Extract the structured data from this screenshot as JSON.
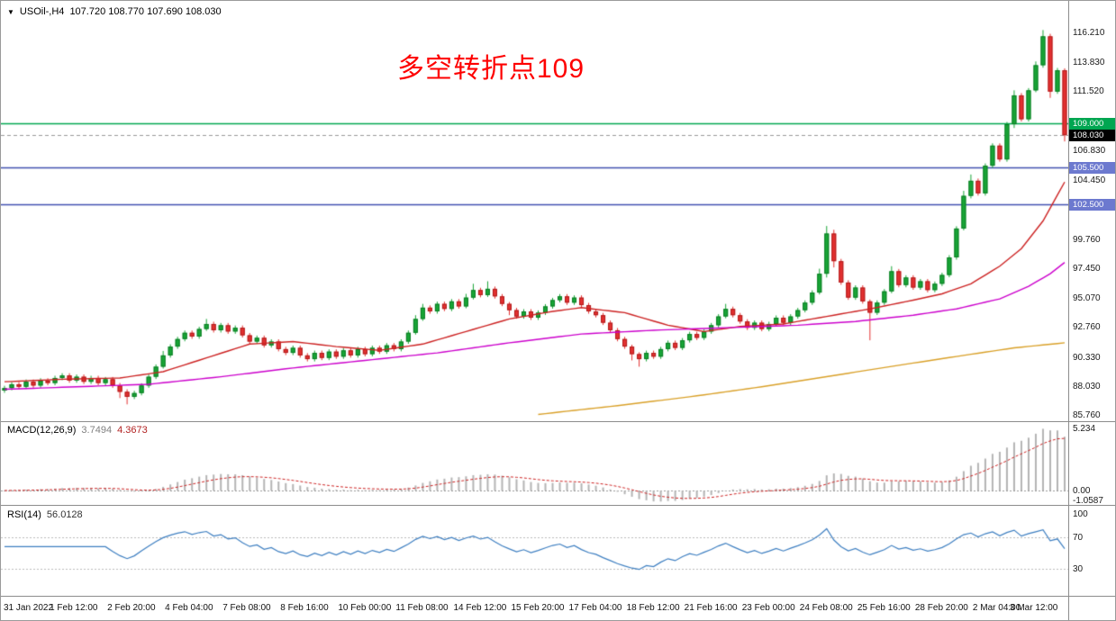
{
  "header": {
    "symbol_tf": "USOil-,H4",
    "ohlc": "107.720 108.770 107.690 108.030"
  },
  "annotation": {
    "text": "多空转折点109",
    "color": "#fe0000"
  },
  "chart_data": [
    {
      "type": "candlestick",
      "title": "USOil-,H4",
      "n": 148,
      "open_first": 87.7,
      "closes": [
        87.9,
        88.2,
        88.0,
        88.4,
        88.1,
        88.5,
        88.3,
        88.7,
        88.9,
        88.5,
        88.8,
        88.4,
        88.7,
        88.3,
        88.6,
        88.1,
        87.6,
        87.2,
        87.5,
        88.1,
        88.8,
        89.6,
        90.5,
        91.2,
        91.8,
        92.3,
        92.0,
        92.6,
        93.0,
        92.5,
        92.9,
        92.4,
        92.7,
        92.1,
        91.6,
        91.9,
        91.3,
        91.6,
        91.0,
        90.7,
        91.1,
        90.5,
        90.2,
        90.7,
        90.3,
        90.8,
        90.4,
        90.9,
        90.5,
        91.0,
        90.6,
        91.1,
        90.8,
        91.3,
        91.0,
        91.6,
        92.3,
        93.4,
        94.3,
        94.0,
        94.6,
        94.2,
        94.8,
        94.4,
        95.1,
        95.7,
        95.3,
        95.8,
        95.2,
        94.6,
        94.1,
        93.6,
        94.0,
        93.5,
        93.9,
        94.4,
        94.9,
        95.2,
        94.7,
        95.1,
        94.5,
        94.0,
        93.7,
        93.1,
        92.5,
        91.8,
        91.2,
        90.6,
        90.2,
        90.7,
        90.4,
        91.0,
        91.5,
        91.1,
        91.7,
        92.2,
        91.9,
        92.4,
        92.9,
        93.6,
        94.2,
        93.7,
        93.2,
        92.7,
        93.1,
        92.6,
        93.0,
        93.5,
        93.1,
        93.6,
        94.1,
        94.7,
        95.5,
        97.0,
        100.2,
        98.0,
        96.3,
        95.1,
        95.9,
        94.8,
        93.9,
        94.7,
        95.6,
        97.2,
        96.1,
        96.7,
        95.9,
        96.4,
        95.7,
        96.2,
        96.9,
        98.3,
        100.6,
        103.2,
        104.4,
        103.4,
        105.6,
        107.2,
        106.1,
        108.9,
        111.2,
        109.3,
        111.6,
        113.6,
        115.9,
        111.5,
        113.2,
        108.03
      ],
      "wick_default": 0.18,
      "wick_overrides": {
        "16": [
          0.2,
          0.5
        ],
        "17": [
          0.2,
          0.6
        ],
        "22": [
          0.35,
          0.15
        ],
        "28": [
          0.4,
          0.15
        ],
        "57": [
          0.3,
          0.15
        ],
        "58": [
          0.3,
          0.15
        ],
        "64": [
          0.3,
          0.15
        ],
        "65": [
          0.5,
          0.15
        ],
        "67": [
          0.6,
          0.15
        ],
        "70": [
          0.15,
          0.4
        ],
        "87": [
          0.15,
          0.5
        ],
        "88": [
          0.15,
          0.6
        ],
        "100": [
          0.4,
          0.15
        ],
        "113": [
          0.4,
          0.15
        ],
        "114": [
          0.6,
          0.3
        ],
        "115": [
          0.3,
          0.5
        ],
        "120": [
          0.15,
          2.2
        ],
        "123": [
          0.4,
          0.15
        ],
        "133": [
          0.4,
          0.15
        ],
        "134": [
          0.5,
          0.2
        ],
        "140": [
          0.4,
          0.3
        ],
        "143": [
          0.3,
          0.15
        ],
        "144": [
          0.5,
          0.2
        ],
        "145": [
          0.2,
          0.5
        ],
        "147": [
          0.15,
          0.5
        ]
      },
      "y_axis": {
        "top_price": 118.72,
        "bottom_price": 85.26,
        "ticks": [
          {
            "price": 116.21,
            "label": "116.210"
          },
          {
            "price": 113.83,
            "label": "113.830"
          },
          {
            "price": 111.52,
            "label": "111.520"
          },
          {
            "price": 106.83,
            "label": "106.830"
          },
          {
            "price": 104.45,
            "label": "104.450"
          },
          {
            "price": 99.76,
            "label": "99.760"
          },
          {
            "price": 97.45,
            "label": "97.450"
          },
          {
            "price": 95.07,
            "label": "95.070"
          },
          {
            "price": 92.76,
            "label": "92.760"
          },
          {
            "price": 90.33,
            "label": "90.330"
          },
          {
            "price": 88.03,
            "label": "88.030"
          },
          {
            "price": 85.76,
            "label": "85.760"
          }
        ],
        "badges": [
          {
            "price": 109.0,
            "label": "109.000",
            "bg": "#00a651"
          },
          {
            "price": 108.03,
            "label": "108.030",
            "bg": "#000000"
          },
          {
            "price": 105.5,
            "label": "105.500",
            "bg": "#6c79cf"
          },
          {
            "price": 102.5,
            "label": "102.500",
            "bg": "#6c79cf"
          }
        ]
      },
      "hlines": [
        {
          "price": 109.0,
          "color": "#00a651",
          "width": 1.6,
          "dash": false
        },
        {
          "price": 105.5,
          "color": "#4050b0",
          "width": 1.6,
          "dash": false
        },
        {
          "price": 102.5,
          "color": "#4050b0",
          "width": 1.6,
          "dash": false
        },
        {
          "price": 108.03,
          "color": "#9a9a9a",
          "width": 1,
          "dash": true
        }
      ],
      "ma_lines": [
        {
          "name": "ma-fast-red",
          "color": "#cc2222",
          "points": [
            [
              0,
              88.4
            ],
            [
              8,
              88.6
            ],
            [
              16,
              88.7
            ],
            [
              22,
              89.2
            ],
            [
              28,
              90.3
            ],
            [
              34,
              91.4
            ],
            [
              40,
              91.6
            ],
            [
              46,
              91.2
            ],
            [
              52,
              90.9
            ],
            [
              58,
              91.4
            ],
            [
              64,
              92.4
            ],
            [
              70,
              93.4
            ],
            [
              76,
              94.0
            ],
            [
              80,
              94.3
            ],
            [
              86,
              93.9
            ],
            [
              92,
              92.9
            ],
            [
              97,
              92.4
            ],
            [
              102,
              92.8
            ],
            [
              108,
              93.0
            ],
            [
              114,
              93.6
            ],
            [
              120,
              94.2
            ],
            [
              126,
              94.9
            ],
            [
              130,
              95.4
            ],
            [
              134,
              96.2
            ],
            [
              138,
              97.6
            ],
            [
              141,
              99.0
            ],
            [
              144,
              101.2
            ],
            [
              147,
              104.3
            ]
          ]
        },
        {
          "name": "ma-mid-magenta",
          "color": "#cc00cc",
          "points": [
            [
              0,
              87.8
            ],
            [
              10,
              88.0
            ],
            [
              20,
              88.2
            ],
            [
              30,
              88.8
            ],
            [
              40,
              89.5
            ],
            [
              50,
              90.1
            ],
            [
              60,
              90.7
            ],
            [
              70,
              91.5
            ],
            [
              80,
              92.2
            ],
            [
              90,
              92.5
            ],
            [
              100,
              92.7
            ],
            [
              110,
              92.9
            ],
            [
              118,
              93.2
            ],
            [
              126,
              93.7
            ],
            [
              132,
              94.2
            ],
            [
              138,
              95.0
            ],
            [
              142,
              96.0
            ],
            [
              145,
              97.0
            ],
            [
              147,
              97.9
            ]
          ]
        },
        {
          "name": "ma-slow-orange",
          "color": "#d9a028",
          "points": [
            [
              74,
              85.8
            ],
            [
              85,
              86.5
            ],
            [
              95,
              87.2
            ],
            [
              105,
              88.0
            ],
            [
              115,
              88.9
            ],
            [
              125,
              89.8
            ],
            [
              133,
              90.5
            ],
            [
              140,
              91.1
            ],
            [
              147,
              91.5
            ]
          ]
        }
      ],
      "colors": {
        "bull": "#18a536",
        "bull_stroke": "#0b7d24",
        "bear": "#e33030",
        "bear_stroke": "#b01c1c"
      },
      "x_tick_indices": [
        2,
        10,
        18,
        26,
        34,
        42,
        50,
        58,
        66,
        74,
        82,
        90,
        98,
        106,
        114,
        122,
        130,
        138,
        146
      ],
      "x_tick_labels": [
        "31 Jan 2022",
        "1 Feb 12:00",
        "2 Feb 20:00",
        "4 Feb 04:00",
        "7 Feb 08:00",
        "8 Feb 16:00",
        "10 Feb 00:00",
        "11 Feb 08:00",
        "14 Feb 12:00",
        "15 Feb 20:00",
        "17 Feb 04:00",
        "18 Feb 12:00",
        "21 Feb 16:00",
        "23 Feb 00:00",
        "24 Feb 08:00",
        "25 Feb 16:00",
        "28 Feb 20:00",
        "2 Mar 04:00",
        "3 Mar 12:00"
      ]
    },
    {
      "type": "bar",
      "name": "MACD",
      "params": "MACD(12,26,9)",
      "value_main": "3.7494",
      "value_signal": "4.3673",
      "fast": 12,
      "slow": 26,
      "signal": 9,
      "axis_labels": [
        "5.234",
        "0.00",
        "-1.0587"
      ],
      "hist_color": "#b4b4b4",
      "signal_color": "#cc2222"
    },
    {
      "type": "line",
      "name": "RSI",
      "params": "RSI(14)",
      "value": "56.0128",
      "period": 14,
      "levels": [
        70,
        30
      ],
      "axis_labels": [
        "100",
        "70",
        "30"
      ],
      "line_color": "#3e7fc1"
    }
  ]
}
